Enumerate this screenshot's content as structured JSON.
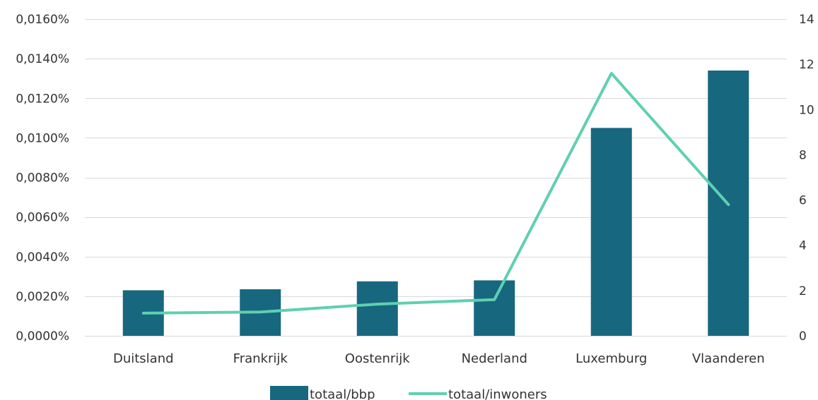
{
  "chart_data": {
    "type": "bar",
    "categories": [
      "Duitsland",
      "Frankrijk",
      "Oostenrijk",
      "Nederland",
      "Luxemburg",
      "Vlaanderen"
    ],
    "series": [
      {
        "name": "totaal/bbp",
        "type": "bar",
        "axis": "left",
        "color": "#17677f",
        "values": [
          0.0023,
          0.00235,
          0.00275,
          0.0028,
          0.0105,
          0.0134
        ]
      },
      {
        "name": "totaal/inwoners",
        "type": "line",
        "axis": "right",
        "color": "#5fd0b0",
        "values": [
          1.0,
          1.05,
          1.4,
          1.6,
          11.6,
          5.8
        ]
      }
    ],
    "y_left": {
      "range": [
        0,
        0.016
      ],
      "ticks": [
        0,
        0.002,
        0.004,
        0.006,
        0.008,
        0.01,
        0.012,
        0.014,
        0.016
      ],
      "tick_labels": [
        "0,0000%",
        "0,0020%",
        "0,0040%",
        "0,0060%",
        "0,0080%",
        "0,0100%",
        "0,0120%",
        "0,0140%",
        "0,0160%"
      ]
    },
    "y_right": {
      "range": [
        0,
        14
      ],
      "ticks": [
        0,
        2,
        4,
        6,
        8,
        10,
        12,
        14
      ],
      "tick_labels": [
        "0",
        "2",
        "4",
        "6",
        "8",
        "10",
        "12",
        "14"
      ]
    },
    "grid": true,
    "legend": "bottom-center"
  }
}
